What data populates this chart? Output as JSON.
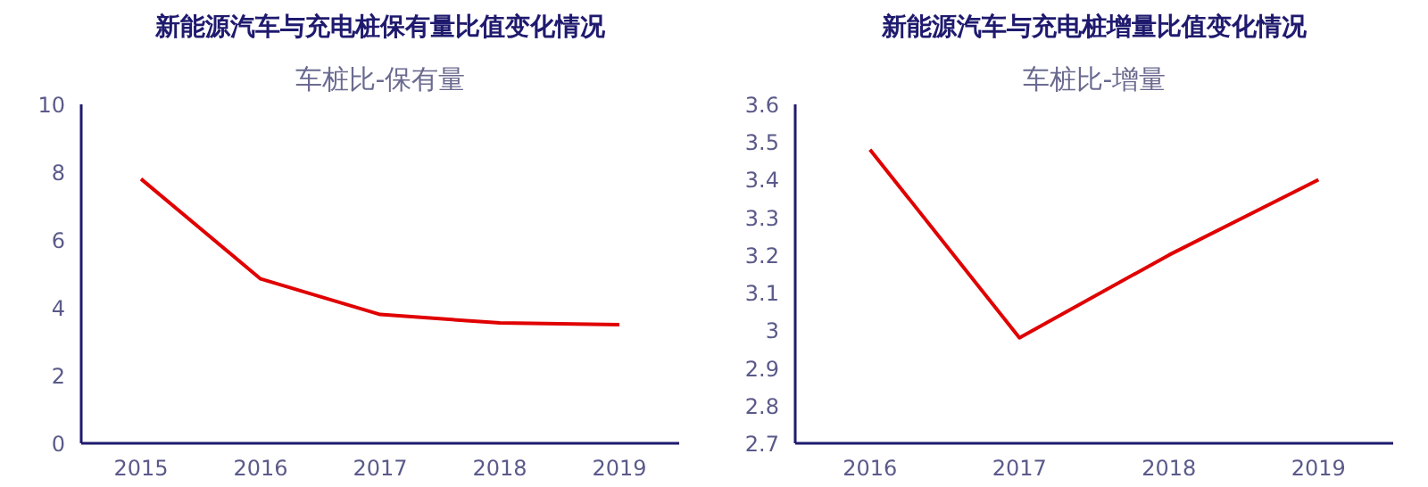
{
  "chart_data": [
    {
      "type": "line",
      "title": "新能源汽车与充电桩保有量比值变化情况",
      "subtitle": "车桩比-保有量",
      "categories": [
        "2015",
        "2016",
        "2017",
        "2018",
        "2019"
      ],
      "series": [
        {
          "color": "#e00000",
          "values": [
            7.8,
            4.85,
            3.8,
            3.55,
            3.5
          ]
        }
      ],
      "ylim": [
        0,
        10
      ],
      "yticks": [
        0,
        2,
        4,
        6,
        8,
        10
      ]
    },
    {
      "type": "line",
      "title": "新能源汽车与充电桩增量比值变化情况",
      "subtitle": "车桩比-增量",
      "categories": [
        "2016",
        "2017",
        "2018",
        "2019"
      ],
      "series": [
        {
          "color": "#e00000",
          "values": [
            3.48,
            2.98,
            3.2,
            3.4
          ]
        }
      ],
      "ylim": [
        2.7,
        3.6
      ],
      "yticks": [
        2.7,
        2.8,
        2.9,
        3,
        3.1,
        3.2,
        3.3,
        3.4,
        3.5,
        3.6
      ]
    }
  ]
}
